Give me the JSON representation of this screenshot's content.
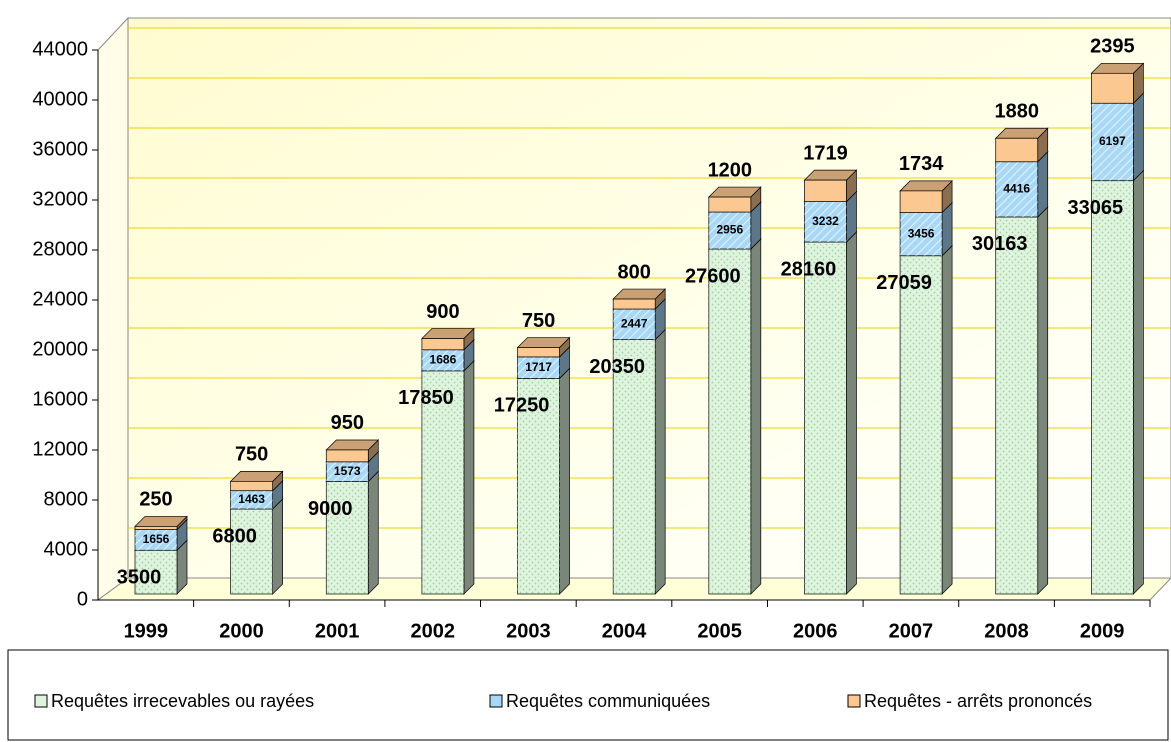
{
  "chart_data": {
    "type": "bar3d_stacked",
    "categories": [
      "1999",
      "2000",
      "2001",
      "2002",
      "2003",
      "2004",
      "2005",
      "2006",
      "2007",
      "2008",
      "2009"
    ],
    "series": [
      {
        "name": "Requêtes irrecevables ou rayées",
        "color": "#dff3df",
        "values": [
          3500,
          6800,
          9000,
          17850,
          17250,
          20350,
          27600,
          28160,
          27059,
          30163,
          33065
        ]
      },
      {
        "name": "Requêtes communiquées",
        "color": "#a9d8f7",
        "values": [
          1656,
          1463,
          1573,
          1686,
          1717,
          2447,
          2956,
          3232,
          3456,
          4416,
          6197
        ]
      },
      {
        "name": "Requêtes - arrêts prononcés",
        "color": "#fcc892",
        "values": [
          250,
          750,
          950,
          900,
          750,
          800,
          1200,
          1719,
          1734,
          1880,
          2395
        ]
      }
    ],
    "ylim": [
      0,
      44000
    ],
    "yticks": [
      0,
      4000,
      8000,
      12000,
      16000,
      20000,
      24000,
      28000,
      32000,
      36000,
      40000,
      44000
    ],
    "grid": true,
    "legend": "bottom"
  }
}
